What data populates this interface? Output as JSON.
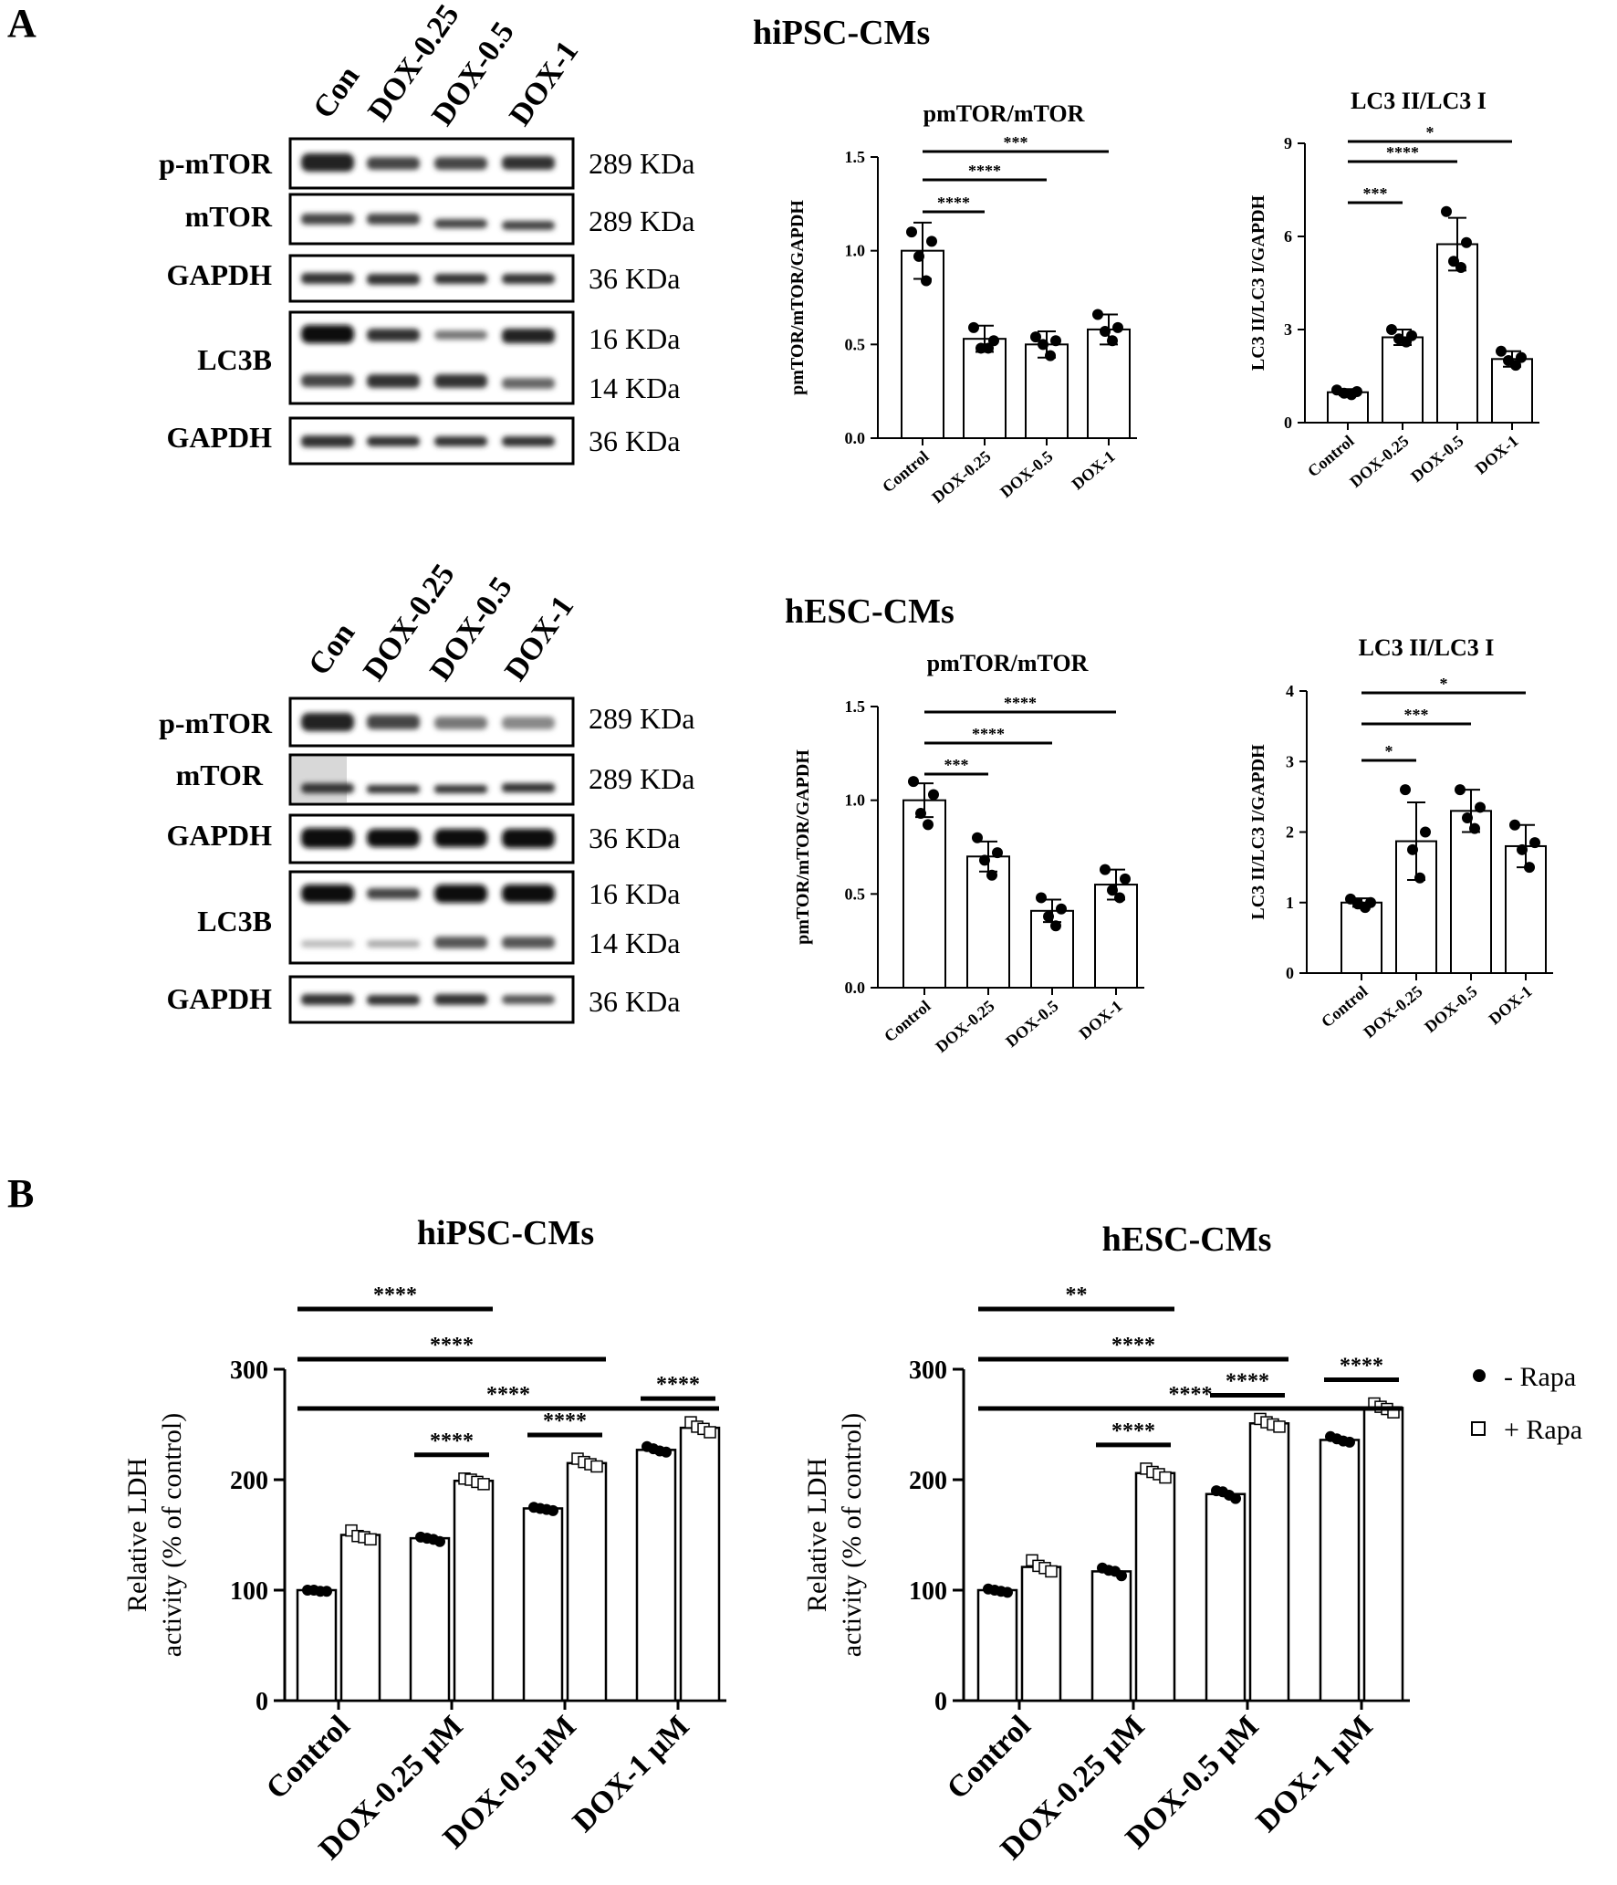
{
  "panel_a": {
    "label": "A",
    "rows": [
      {
        "title": "hiPSC-CMs",
        "lanes": [
          "Con",
          "DOX-0.25",
          "DOX-0.5",
          "DOX-1"
        ],
        "blots": [
          {
            "label": "p-mTOR",
            "sizes": [
              "289 KDa"
            ]
          },
          {
            "label": "mTOR",
            "sizes": [
              "289 KDa"
            ]
          },
          {
            "label": "GAPDH",
            "sizes": [
              "36 KDa"
            ]
          },
          {
            "label": "LC3B",
            "sizes": [
              "16 KDa",
              "14 KDa"
            ]
          },
          {
            "label": "GAPDH",
            "sizes": [
              "36 KDa"
            ]
          }
        ]
      },
      {
        "title": "hESC-CMs",
        "lanes": [
          "Con",
          "DOX-0.25",
          "DOX-0.5",
          "DOX-1"
        ],
        "blots": [
          {
            "label": "p-mTOR",
            "sizes": [
              "289 KDa"
            ]
          },
          {
            "label": "mTOR",
            "sizes": [
              "289 KDa"
            ]
          },
          {
            "label": "GAPDH",
            "sizes": [
              "36 KDa"
            ]
          },
          {
            "label": "LC3B",
            "sizes": [
              "16 KDa",
              "14 KDa"
            ]
          },
          {
            "label": "GAPDH",
            "sizes": [
              "36 KDa"
            ]
          }
        ]
      }
    ]
  },
  "panel_b": {
    "label": "B"
  },
  "legend": [
    {
      "label": "- Rapa",
      "marker": "filled-circle"
    },
    {
      "label": "+ Rapa",
      "marker": "open-square"
    }
  ],
  "colors": {
    "ink": "#000000",
    "bar_fill": "#ffffff",
    "background": "#ffffff"
  },
  "chart_data": [
    {
      "id": "a1",
      "type": "bar",
      "title": "pmTOR/mTOR",
      "ylabel": "pmTOR/mTOR/GAPDH",
      "categories": [
        "Control",
        "DOX-0.25",
        "DOX-0.5",
        "DOX-1"
      ],
      "values": [
        1.0,
        0.53,
        0.5,
        0.58
      ],
      "errors": [
        0.15,
        0.07,
        0.07,
        0.08
      ],
      "points": [
        [
          1.1,
          1.05,
          0.97,
          0.84
        ],
        [
          0.59,
          0.52,
          0.48,
          0.48
        ],
        [
          0.54,
          0.52,
          0.5,
          0.44
        ],
        [
          0.66,
          0.59,
          0.57,
          0.52
        ]
      ],
      "ylim": [
        0,
        1.5
      ],
      "yticks": [
        0.0,
        0.5,
        1.0,
        1.5
      ],
      "ytick_labels": [
        "0.0",
        "0.5",
        "1.0",
        "1.5"
      ],
      "significance": [
        {
          "from": 0,
          "to": 1,
          "label": "****"
        },
        {
          "from": 0,
          "to": 2,
          "label": "****"
        },
        {
          "from": 0,
          "to": 3,
          "label": "***"
        }
      ]
    },
    {
      "id": "a2",
      "type": "bar",
      "title": "LC3 II/LC3 I",
      "ylabel": "LC3 II/LC3 I/GAPDH",
      "categories": [
        "Control",
        "DOX-0.25",
        "DOX-0.5",
        "DOX-1"
      ],
      "values": [
        0.98,
        2.75,
        5.75,
        2.05
      ],
      "errors": [
        0.1,
        0.25,
        0.85,
        0.25
      ],
      "points": [
        [
          1.05,
          1.0,
          0.95,
          0.9
        ],
        [
          3.0,
          2.8,
          2.7,
          2.6
        ],
        [
          6.8,
          5.8,
          5.2,
          5.0
        ],
        [
          2.3,
          2.1,
          2.0,
          1.85
        ]
      ],
      "ylim": [
        0,
        9
      ],
      "yticks": [
        0,
        3,
        6,
        9
      ],
      "ytick_labels": [
        "0",
        "3",
        "6",
        "9"
      ],
      "significance": [
        {
          "from": 0,
          "to": 1,
          "label": "***"
        },
        {
          "from": 0,
          "to": 2,
          "label": "****"
        },
        {
          "from": 0,
          "to": 3,
          "label": "*"
        }
      ]
    },
    {
      "id": "a3",
      "type": "bar",
      "title": "pmTOR/mTOR",
      "ylabel": "pmTOR/mTOR/GAPDH",
      "categories": [
        "Control",
        "DOX-0.25",
        "DOX-0.5",
        "DOX-1"
      ],
      "values": [
        1.0,
        0.7,
        0.41,
        0.55
      ],
      "errors": [
        0.09,
        0.08,
        0.06,
        0.08
      ],
      "points": [
        [
          1.1,
          1.03,
          0.93,
          0.87
        ],
        [
          0.8,
          0.72,
          0.68,
          0.6
        ],
        [
          0.48,
          0.42,
          0.38,
          0.33
        ],
        [
          0.63,
          0.58,
          0.52,
          0.48
        ]
      ],
      "ylim": [
        0,
        1.5
      ],
      "yticks": [
        0.0,
        0.5,
        1.0,
        1.5
      ],
      "ytick_labels": [
        "0.0",
        "0.5",
        "1.0",
        "1.5"
      ],
      "significance": [
        {
          "from": 0,
          "to": 1,
          "label": "***"
        },
        {
          "from": 0,
          "to": 2,
          "label": "****"
        },
        {
          "from": 0,
          "to": 3,
          "label": "****"
        }
      ]
    },
    {
      "id": "a4",
      "type": "bar",
      "title": "LC3 II/LC3 I",
      "ylabel": "LC3 II/LC3 I/GAPDH",
      "categories": [
        "Control",
        "DOX-0.25",
        "DOX-0.5",
        "DOX-1"
      ],
      "values": [
        1.0,
        1.87,
        2.3,
        1.8
      ],
      "errors": [
        0.06,
        0.55,
        0.3,
        0.3
      ],
      "points": [
        [
          1.05,
          1.0,
          0.98,
          0.93
        ],
        [
          2.6,
          2.0,
          1.75,
          1.35
        ],
        [
          2.6,
          2.35,
          2.2,
          2.05
        ],
        [
          2.1,
          1.85,
          1.75,
          1.5
        ]
      ],
      "ylim": [
        0,
        4
      ],
      "yticks": [
        0,
        1,
        2,
        3,
        4
      ],
      "ytick_labels": [
        "0",
        "1",
        "2",
        "3",
        "4"
      ],
      "significance": [
        {
          "from": 0,
          "to": 1,
          "label": "*"
        },
        {
          "from": 0,
          "to": 2,
          "label": "***"
        },
        {
          "from": 0,
          "to": 3,
          "label": "*"
        }
      ]
    },
    {
      "id": "b1",
      "type": "bar",
      "title": "hiPSC-CMs",
      "ylabel": [
        "Relative LDH",
        "activity (% of control)"
      ],
      "categories": [
        "Control",
        "DOX-0.25 μM",
        "DOX-0.5 μM",
        "DOX-1 μM"
      ],
      "series": [
        {
          "name": "- Rapa",
          "values": [
            100,
            147,
            174,
            227
          ],
          "points": [
            [
              100,
              100,
              99,
              99
            ],
            [
              148,
              147,
              146,
              144
            ],
            [
              175,
              174,
              173,
              172
            ],
            [
              230,
              228,
              226,
              225
            ]
          ]
        },
        {
          "name": "+ Rapa",
          "values": [
            150,
            199,
            215,
            247
          ],
          "points": [
            [
              154,
              149,
              148,
              146
            ],
            [
              201,
              200,
              198,
              196
            ],
            [
              219,
              216,
              214,
              212
            ],
            [
              252,
              248,
              246,
              243
            ]
          ]
        }
      ],
      "ylim": [
        0,
        300
      ],
      "yticks": [
        0,
        100,
        200,
        300
      ],
      "ytick_labels": [
        "0",
        "100",
        "200",
        "300"
      ],
      "significance": [
        {
          "type": "bracket",
          "from": 0,
          "to": 1,
          "label": "****"
        },
        {
          "type": "bracket",
          "from": 0,
          "to": 2,
          "label": "****"
        },
        {
          "type": "bracket",
          "from": 0,
          "to": 3,
          "label": "****"
        },
        {
          "type": "pair",
          "group": 1,
          "label": "****"
        },
        {
          "type": "pair",
          "group": 2,
          "label": "****"
        },
        {
          "type": "pair",
          "group": 3,
          "label": "****"
        }
      ]
    },
    {
      "id": "b2",
      "type": "bar",
      "title": "hESC-CMs",
      "ylabel": [
        "Relative LDH",
        "activity (% of control)"
      ],
      "categories": [
        "Control",
        "DOX-0.25 μM",
        "DOX-0.5 μM",
        "DOX-1 μM"
      ],
      "series": [
        {
          "name": "- Rapa",
          "values": [
            100,
            117,
            187,
            236
          ],
          "points": [
            [
              101,
              100,
              99,
              98
            ],
            [
              120,
              118,
              117,
              113
            ],
            [
              190,
              189,
              186,
              183
            ],
            [
              239,
              237,
              235,
              234
            ]
          ]
        },
        {
          "name": "+ Rapa",
          "values": [
            121,
            206,
            251,
            265
          ],
          "points": [
            [
              127,
              122,
              120,
              117
            ],
            [
              210,
              207,
              205,
              202
            ],
            [
              255,
              252,
              250,
              248
            ],
            [
              269,
              266,
              264,
              261
            ]
          ]
        }
      ],
      "ylim": [
        0,
        300
      ],
      "yticks": [
        0,
        100,
        200,
        300
      ],
      "ytick_labels": [
        "0",
        "100",
        "200",
        "300"
      ],
      "significance": [
        {
          "type": "bracket",
          "from": 0,
          "to": 1,
          "label": "**"
        },
        {
          "type": "bracket",
          "from": 0,
          "to": 2,
          "label": "****"
        },
        {
          "type": "bracket",
          "from": 0,
          "to": 3,
          "label": "****"
        },
        {
          "type": "pair",
          "group": 1,
          "label": "****"
        },
        {
          "type": "pair",
          "group": 2,
          "label": "****"
        },
        {
          "type": "pair",
          "group": 3,
          "label": "****"
        }
      ]
    }
  ]
}
